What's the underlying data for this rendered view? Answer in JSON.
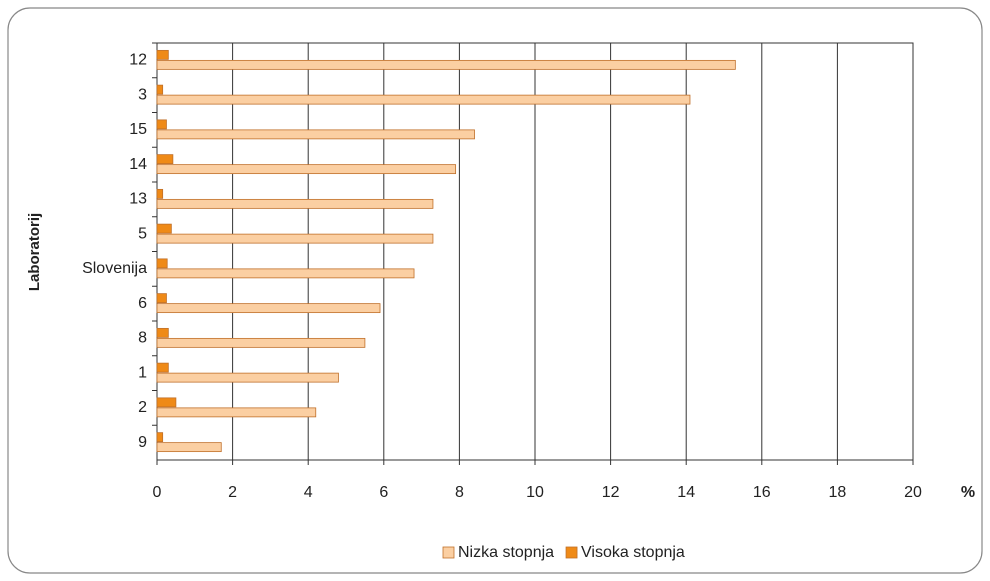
{
  "chart_data": {
    "type": "hbar",
    "y_label": "Laboratorij",
    "x_unit": "%",
    "categories": [
      "12",
      "3",
      "15",
      "14",
      "13",
      "5",
      "Slovenija",
      "6",
      "8",
      "1",
      "2",
      "9"
    ],
    "series": [
      {
        "name": "Nizka stopnja",
        "color": "#fbcfa2",
        "values": [
          15.3,
          14.1,
          8.4,
          7.9,
          7.3,
          7.3,
          6.8,
          5.9,
          5.5,
          4.8,
          4.2,
          1.7
        ]
      },
      {
        "name": "Visoka stopnja",
        "color": "#ef8a17",
        "values": [
          0.3,
          0.15,
          0.25,
          0.42,
          0.15,
          0.38,
          0.27,
          0.25,
          0.3,
          0.3,
          0.5,
          0.15
        ]
      }
    ],
    "xlim": [
      0,
      20
    ],
    "xticks": [
      0,
      2,
      4,
      6,
      8,
      10,
      12,
      14,
      16,
      18,
      20
    ],
    "grid": true
  }
}
